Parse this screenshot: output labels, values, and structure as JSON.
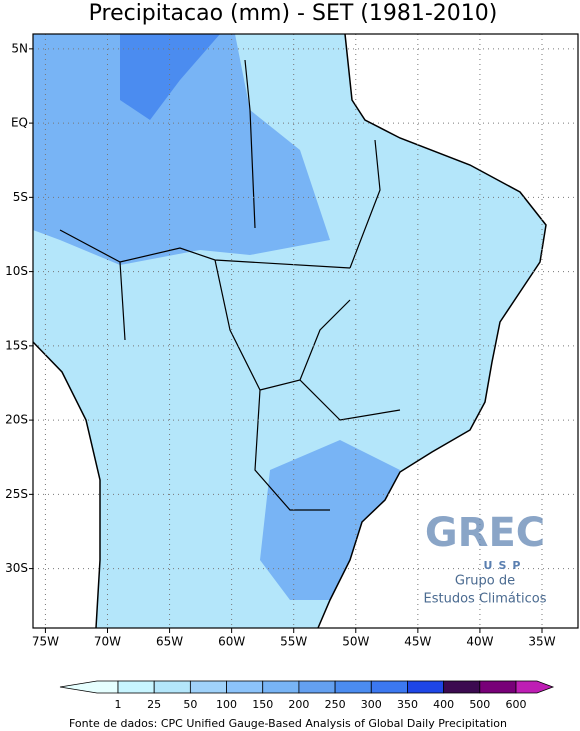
{
  "chart_data": {
    "type": "map",
    "title": "Precipitacao (mm) - SET (1981-2010)",
    "xlim": [
      -76,
      -32.1
    ],
    "ylim": [
      -34,
      6
    ],
    "xticks": [
      {
        "value": -75,
        "label": "75W"
      },
      {
        "value": -70,
        "label": "70W"
      },
      {
        "value": -65,
        "label": "65W"
      },
      {
        "value": -60,
        "label": "60W"
      },
      {
        "value": -55,
        "label": "55W"
      },
      {
        "value": -50,
        "label": "50W"
      },
      {
        "value": -45,
        "label": "45W"
      },
      {
        "value": -40,
        "label": "40W"
      },
      {
        "value": -35,
        "label": "35W"
      }
    ],
    "yticks": [
      {
        "value": 5,
        "label": "5N"
      },
      {
        "value": 0,
        "label": "EQ"
      },
      {
        "value": -5,
        "label": "5S"
      },
      {
        "value": -10,
        "label": "10S"
      },
      {
        "value": -15,
        "label": "15S"
      },
      {
        "value": -20,
        "label": "20S"
      },
      {
        "value": -25,
        "label": "25S"
      },
      {
        "value": -30,
        "label": "30S"
      }
    ],
    "grid": true,
    "levels": [
      1,
      25,
      50,
      100,
      150,
      200,
      250,
      300,
      350,
      400,
      500,
      600
    ],
    "colors": [
      "#e6ffff",
      "#c8f5ff",
      "#b4e6fa",
      "#a0d2fa",
      "#8cc3fa",
      "#78b4f5",
      "#64a0f0",
      "#4b8cf0",
      "#3c78f0",
      "#1e46e6",
      "#3c0a50",
      "#780078",
      "#be1eb4"
    ],
    "source": "Fonte de dados: CPC Unified Gauge-Based Analysis of Global Daily Precipitation",
    "logo": {
      "name": "GREC",
      "sub": "USP",
      "line1": "Grupo de",
      "line2": "Estudos Climáticos"
    }
  }
}
